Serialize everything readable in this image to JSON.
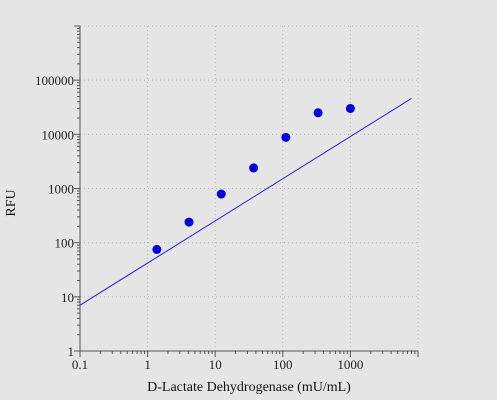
{
  "chart_data": {
    "type": "scatter",
    "title": "",
    "xlabel": "D-Lactate Dehydrogenase (mU/mL)",
    "ylabel": "RFU",
    "xscale": "log",
    "yscale": "log",
    "xlim": [
      0.1,
      10000
    ],
    "ylim": [
      1,
      1000000
    ],
    "grid": true,
    "x_ticks": [
      "0.1",
      "1",
      "10",
      "100",
      "1000"
    ],
    "y_ticks": [
      "1",
      "10",
      "100",
      "1000",
      "10000",
      "100000"
    ],
    "points": [
      {
        "x": 1.37,
        "y": 75
      },
      {
        "x": 4.1,
        "y": 240
      },
      {
        "x": 12.3,
        "y": 790
      },
      {
        "x": 37,
        "y": 2400
      },
      {
        "x": 111,
        "y": 8800
      },
      {
        "x": 333,
        "y": 25000
      },
      {
        "x": 1000,
        "y": 30000
      }
    ],
    "fit_line": {
      "x": [
        0.1,
        8000
      ],
      "y": [
        7,
        46000
      ]
    },
    "colors": {
      "points": "#0000dd",
      "line": "#2222cc",
      "background": "#e5e5e5",
      "grid": "#b5b5b5",
      "axis": "#555555"
    }
  }
}
